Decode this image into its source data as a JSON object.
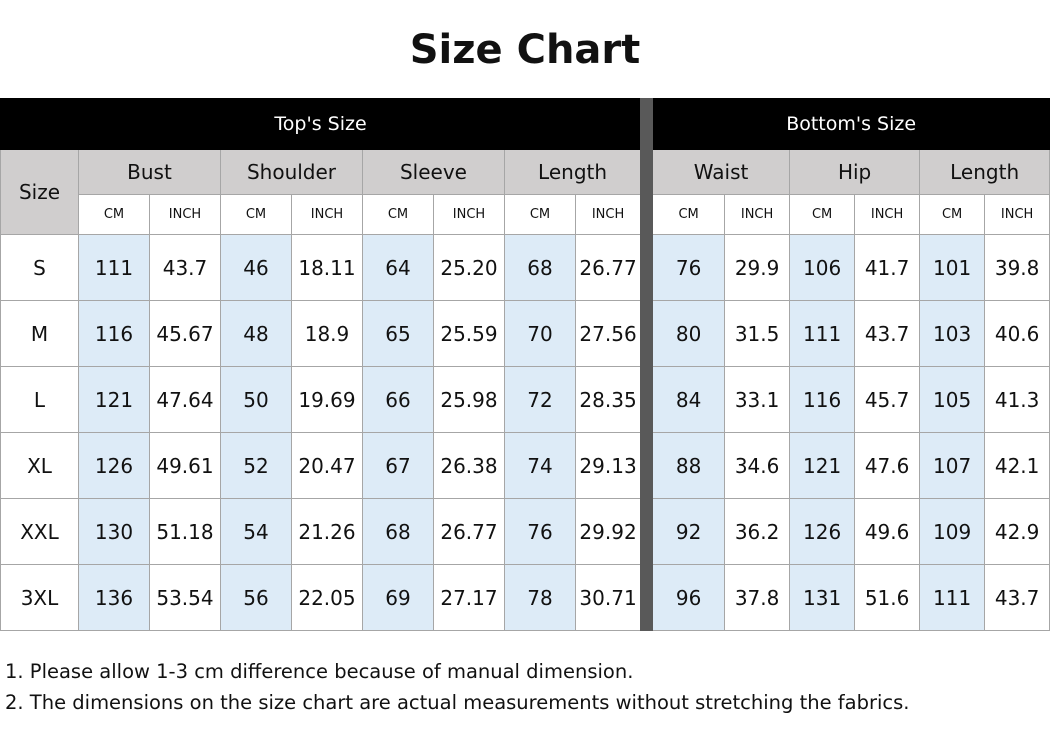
{
  "title": "Size Chart",
  "table": {
    "groups": [
      "Top's Size",
      "Bottom's Size"
    ],
    "size_header": "Size",
    "measures": [
      "Bust",
      "Shoulder",
      "Sleeve",
      "Length",
      "Waist",
      "Hip",
      "Length"
    ],
    "units": [
      "CM",
      "INCH"
    ],
    "rows": [
      [
        "S",
        "111",
        "43.7",
        "46",
        "18.11",
        "64",
        "25.20",
        "68",
        "26.77",
        "76",
        "29.9",
        "106",
        "41.7",
        "101",
        "39.8"
      ],
      [
        "M",
        "116",
        "45.67",
        "48",
        "18.9",
        "65",
        "25.59",
        "70",
        "27.56",
        "80",
        "31.5",
        "111",
        "43.7",
        "103",
        "40.6"
      ],
      [
        "L",
        "121",
        "47.64",
        "50",
        "19.69",
        "66",
        "25.98",
        "72",
        "28.35",
        "84",
        "33.1",
        "116",
        "45.7",
        "105",
        "41.3"
      ],
      [
        "XL",
        "126",
        "49.61",
        "52",
        "20.47",
        "67",
        "26.38",
        "74",
        "29.13",
        "88",
        "34.6",
        "121",
        "47.6",
        "107",
        "42.1"
      ],
      [
        "XXL",
        "130",
        "51.18",
        "54",
        "21.26",
        "68",
        "26.77",
        "76",
        "29.92",
        "92",
        "36.2",
        "126",
        "49.6",
        "109",
        "42.9"
      ],
      [
        "3XL",
        "136",
        "53.54",
        "56",
        "22.05",
        "69",
        "27.17",
        "78",
        "30.71",
        "96",
        "37.8",
        "131",
        "51.6",
        "111",
        "43.7"
      ]
    ]
  },
  "notes": [
    "1. Please allow 1-3 cm difference because of manual dimension.",
    "2. The dimensions on the size chart are actual measurements without stretching the fabrics."
  ]
}
